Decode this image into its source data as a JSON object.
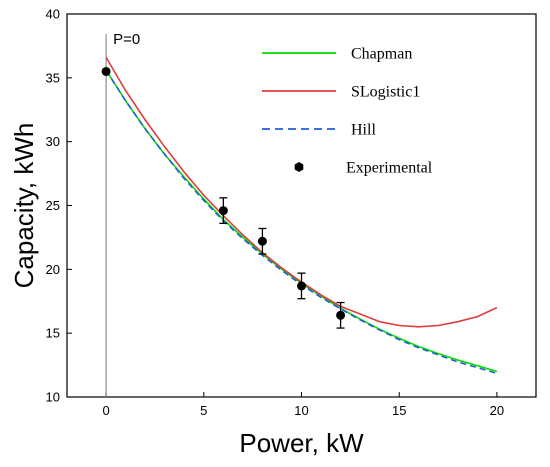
{
  "chart_data": {
    "type": "line",
    "xlabel": "Power, kW",
    "ylabel": "Capacity, kWh",
    "xlim": [
      -2,
      22
    ],
    "ylim": [
      10,
      40
    ],
    "xticks": [
      0,
      5,
      10,
      15,
      20
    ],
    "yticks": [
      10,
      15,
      20,
      25,
      30,
      35,
      40
    ],
    "annotation": {
      "text": "P=0",
      "x": 0
    },
    "legend_position": "top-right",
    "series": [
      {
        "name": "Chapman",
        "color": "#00dd00",
        "style": "solid",
        "x": [
          0,
          1,
          2,
          3,
          4,
          5,
          6,
          7,
          8,
          9,
          10,
          11,
          12,
          13,
          14,
          15,
          16,
          17,
          18,
          19,
          20
        ],
        "y": [
          35.6,
          33.2,
          31.0,
          29.0,
          27.2,
          25.5,
          23.9,
          22.5,
          21.2,
          20.0,
          18.9,
          17.9,
          16.95,
          16.1,
          15.3,
          14.6,
          13.95,
          13.4,
          12.9,
          12.45,
          12.0
        ]
      },
      {
        "name": "SLogistic1",
        "color": "#e03c3c",
        "style": "solid",
        "x": [
          0,
          1,
          2,
          3,
          4,
          5,
          6,
          7,
          8,
          9,
          10,
          11,
          12,
          13,
          14,
          15,
          16,
          17,
          18,
          19,
          20
        ],
        "y": [
          36.6,
          34.0,
          31.7,
          29.6,
          27.6,
          25.8,
          24.2,
          22.7,
          21.3,
          20.1,
          19.0,
          18.0,
          17.1,
          16.5,
          15.9,
          15.6,
          15.5,
          15.6,
          15.9,
          16.3,
          17.0
        ]
      },
      {
        "name": "Hill",
        "color": "#1f5fd6",
        "style": "dashed",
        "x": [
          0,
          1,
          2,
          3,
          4,
          5,
          6,
          7,
          8,
          9,
          10,
          11,
          12,
          13,
          14,
          15,
          16,
          17,
          18,
          19,
          20
        ],
        "y": [
          35.6,
          33.2,
          31.0,
          29.0,
          27.1,
          25.4,
          23.8,
          22.4,
          21.1,
          19.9,
          18.8,
          17.8,
          16.9,
          16.05,
          15.25,
          14.5,
          13.85,
          13.3,
          12.75,
          12.3,
          11.85
        ]
      },
      {
        "name": "Experimental",
        "color": "#000000",
        "style": "points",
        "x": [
          0,
          6,
          8,
          10,
          12
        ],
        "y": [
          35.5,
          24.6,
          22.2,
          18.7,
          16.4
        ],
        "error": [
          0,
          1.0,
          1.0,
          1.0,
          1.0
        ]
      }
    ]
  }
}
